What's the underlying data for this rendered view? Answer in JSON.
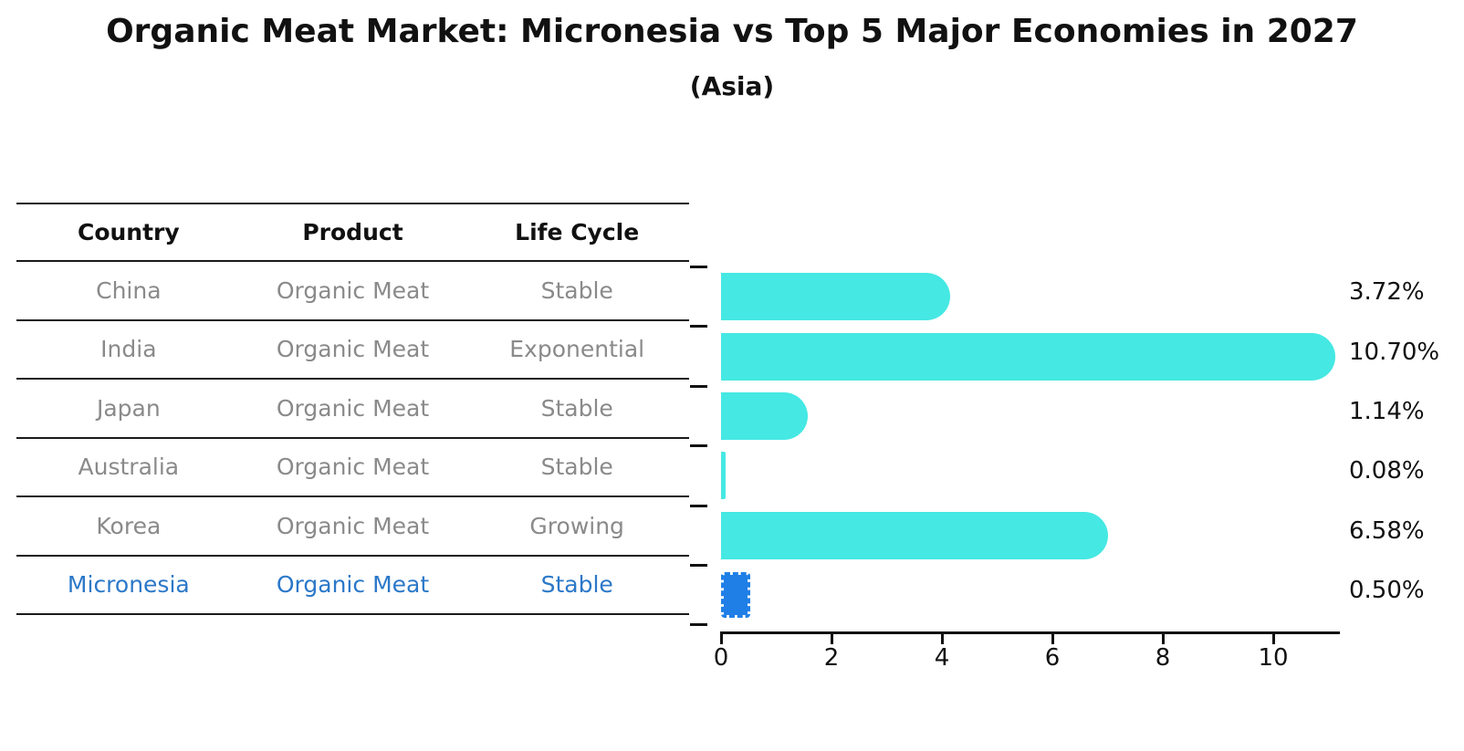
{
  "title": "Organic Meat Market: Micronesia vs Top 5 Major Economies in 2027",
  "subtitle": "(Asia)",
  "table": {
    "headers": [
      "Country",
      "Product",
      "Life Cycle"
    ],
    "rows": [
      {
        "country": "China",
        "product": "Organic Meat",
        "life_cycle": "Stable",
        "highlighted": false
      },
      {
        "country": "India",
        "product": "Organic Meat",
        "life_cycle": "Exponential",
        "highlighted": false
      },
      {
        "country": "Japan",
        "product": "Organic Meat",
        "life_cycle": "Stable",
        "highlighted": false
      },
      {
        "country": "Australia",
        "product": "Organic Meat",
        "life_cycle": "Stable",
        "highlighted": false
      },
      {
        "country": "Korea",
        "product": "Organic Meat",
        "life_cycle": "Growing",
        "highlighted": false
      },
      {
        "country": "Micronesia",
        "product": "Organic Meat",
        "life_cycle": "Stable",
        "highlighted": true
      }
    ]
  },
  "chart_data": {
    "type": "bar",
    "orientation": "horizontal",
    "title": "Organic Meat Market: Micronesia vs Top 5 Major Economies in 2027",
    "subtitle": "(Asia)",
    "categories": [
      "China",
      "India",
      "Japan",
      "Australia",
      "Korea",
      "Micronesia"
    ],
    "values": [
      3.72,
      10.7,
      1.14,
      0.08,
      6.58,
      0.5
    ],
    "value_labels": [
      "3.72%",
      "10.70%",
      "1.14%",
      "0.08%",
      "6.58%",
      "0.50%"
    ],
    "unit": "percent",
    "x_ticks": [
      "0",
      "2",
      "4",
      "6",
      "8",
      "10"
    ],
    "x_tick_values": [
      0,
      2,
      4,
      6,
      8,
      10
    ],
    "xlim": [
      0,
      11.2
    ],
    "grid": false,
    "legend": "none",
    "bar_color": "#45E8E3",
    "highlight_bar_color": "#1F7FE6",
    "highlight_index": 5
  },
  "colors": {
    "bar": "#45E8E3",
    "highlight_bar": "#1F7FE6",
    "highlight_text": "#2B78C8",
    "row_text": "#8A8A8A",
    "heading_text": "#111111",
    "axis": "#111111",
    "background": "#FFFFFF"
  }
}
